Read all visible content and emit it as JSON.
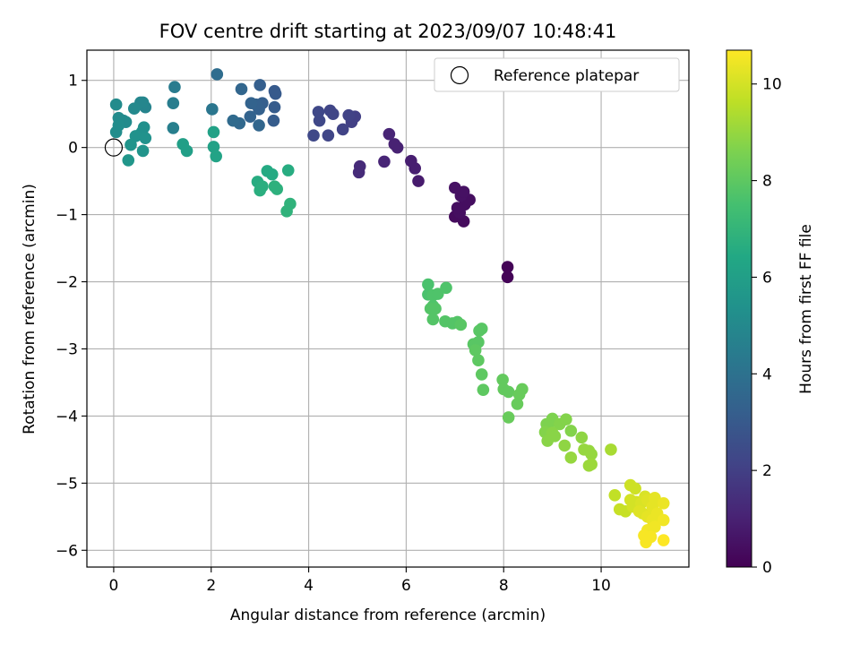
{
  "chart_data": {
    "type": "scatter",
    "title": "FOV centre drift starting at 2023/09/07 10:48:41",
    "xlabel": "Angular distance from reference (arcmin)",
    "ylabel": "Rotation from reference (arcmin)",
    "xlim": [
      -0.55,
      11.8
    ],
    "ylim": [
      -6.25,
      1.45
    ],
    "xticks": [
      0,
      2,
      4,
      6,
      8,
      10
    ],
    "yticks": [
      1,
      0,
      -1,
      -2,
      -3,
      -4,
      -5,
      -6
    ],
    "grid": true,
    "legend": {
      "position": "top-right",
      "entries": [
        "Reference platepar"
      ]
    },
    "reference_point": {
      "x": 0,
      "y": 0
    },
    "colorbar": {
      "label": "Hours from first FF file",
      "colormap": "viridis",
      "range": [
        0,
        10.7
      ],
      "ticks": [
        0,
        2,
        4,
        6,
        8,
        10
      ]
    },
    "points": [
      {
        "x": 8.08,
        "y": -1.78,
        "h": 0.1
      },
      {
        "x": 8.08,
        "y": -1.93,
        "h": 0.1
      },
      {
        "x": 7.18,
        "y": -1.1,
        "h": 0.3
      },
      {
        "x": 7.0,
        "y": -1.03,
        "h": 0.3
      },
      {
        "x": 7.1,
        "y": -0.97,
        "h": 0.4
      },
      {
        "x": 7.2,
        "y": -0.85,
        "h": 0.4
      },
      {
        "x": 7.3,
        "y": -0.78,
        "h": 0.4
      },
      {
        "x": 7.12,
        "y": -0.72,
        "h": 0.5
      },
      {
        "x": 7.18,
        "y": -0.66,
        "h": 0.5
      },
      {
        "x": 7.0,
        "y": -0.6,
        "h": 0.5
      },
      {
        "x": 7.05,
        "y": -0.9,
        "h": 0.4
      },
      {
        "x": 6.25,
        "y": -0.5,
        "h": 0.8
      },
      {
        "x": 6.18,
        "y": -0.31,
        "h": 0.9
      },
      {
        "x": 6.1,
        "y": -0.2,
        "h": 0.9
      },
      {
        "x": 5.82,
        "y": 0.0,
        "h": 1.0
      },
      {
        "x": 5.76,
        "y": 0.05,
        "h": 1.0
      },
      {
        "x": 5.65,
        "y": 0.2,
        "h": 1.1
      },
      {
        "x": 5.55,
        "y": -0.21,
        "h": 1.1
      },
      {
        "x": 5.03,
        "y": -0.37,
        "h": 1.3
      },
      {
        "x": 5.05,
        "y": -0.28,
        "h": 1.3
      },
      {
        "x": 4.95,
        "y": 0.46,
        "h": 2.0
      },
      {
        "x": 4.88,
        "y": 0.38,
        "h": 2.0
      },
      {
        "x": 4.82,
        "y": 0.48,
        "h": 2.1
      },
      {
        "x": 4.7,
        "y": 0.27,
        "h": 2.1
      },
      {
        "x": 4.5,
        "y": 0.5,
        "h": 2.2
      },
      {
        "x": 4.44,
        "y": 0.55,
        "h": 2.2
      },
      {
        "x": 4.4,
        "y": 0.18,
        "h": 2.2
      },
      {
        "x": 4.22,
        "y": 0.4,
        "h": 2.3
      },
      {
        "x": 4.2,
        "y": 0.53,
        "h": 2.3
      },
      {
        "x": 4.1,
        "y": 0.18,
        "h": 2.3
      },
      {
        "x": 3.32,
        "y": 0.8,
        "h": 3.0
      },
      {
        "x": 3.3,
        "y": 0.84,
        "h": 3.0
      },
      {
        "x": 3.3,
        "y": 0.6,
        "h": 3.1
      },
      {
        "x": 3.28,
        "y": 0.4,
        "h": 3.1
      },
      {
        "x": 3.05,
        "y": 0.66,
        "h": 3.2
      },
      {
        "x": 3.0,
        "y": 0.93,
        "h": 3.2
      },
      {
        "x": 2.98,
        "y": 0.57,
        "h": 3.3
      },
      {
        "x": 2.92,
        "y": 0.64,
        "h": 3.3
      },
      {
        "x": 2.82,
        "y": 0.66,
        "h": 3.4
      },
      {
        "x": 2.8,
        "y": 0.46,
        "h": 3.4
      },
      {
        "x": 2.98,
        "y": 0.33,
        "h": 3.5
      },
      {
        "x": 2.62,
        "y": 0.87,
        "h": 3.5
      },
      {
        "x": 2.58,
        "y": 0.36,
        "h": 3.6
      },
      {
        "x": 2.45,
        "y": 0.4,
        "h": 3.7
      },
      {
        "x": 2.12,
        "y": 1.09,
        "h": 3.8
      },
      {
        "x": 2.02,
        "y": 0.57,
        "h": 4.2
      },
      {
        "x": 1.25,
        "y": 0.9,
        "h": 4.4
      },
      {
        "x": 1.22,
        "y": 0.66,
        "h": 4.5
      },
      {
        "x": 1.22,
        "y": 0.29,
        "h": 4.6
      },
      {
        "x": 0.65,
        "y": 0.6,
        "h": 4.8
      },
      {
        "x": 0.6,
        "y": 0.67,
        "h": 4.9
      },
      {
        "x": 0.55,
        "y": 0.67,
        "h": 4.9
      },
      {
        "x": 0.42,
        "y": 0.58,
        "h": 5.0
      },
      {
        "x": 0.2,
        "y": 0.4,
        "h": 5.0
      },
      {
        "x": 0.25,
        "y": 0.38,
        "h": 5.1
      },
      {
        "x": 0.1,
        "y": 0.44,
        "h": 5.1
      },
      {
        "x": 0.05,
        "y": 0.64,
        "h": 5.1
      },
      {
        "x": 0.1,
        "y": 0.33,
        "h": 5.2
      },
      {
        "x": 0.05,
        "y": 0.23,
        "h": 5.2
      },
      {
        "x": 0.62,
        "y": 0.3,
        "h": 5.3
      },
      {
        "x": 0.58,
        "y": 0.23,
        "h": 5.3
      },
      {
        "x": 0.45,
        "y": 0.17,
        "h": 5.4
      },
      {
        "x": 0.65,
        "y": 0.14,
        "h": 5.4
      },
      {
        "x": 0.35,
        "y": 0.04,
        "h": 5.5
      },
      {
        "x": 0.6,
        "y": -0.05,
        "h": 5.5
      },
      {
        "x": 0.3,
        "y": -0.19,
        "h": 5.6
      },
      {
        "x": 1.42,
        "y": 0.05,
        "h": 6.0
      },
      {
        "x": 1.5,
        "y": -0.05,
        "h": 6.0
      },
      {
        "x": 2.05,
        "y": 0.23,
        "h": 6.1
      },
      {
        "x": 2.05,
        "y": 0.01,
        "h": 6.1
      },
      {
        "x": 2.1,
        "y": -0.13,
        "h": 6.2
      },
      {
        "x": 3.15,
        "y": -0.35,
        "h": 6.5
      },
      {
        "x": 3.25,
        "y": -0.4,
        "h": 6.5
      },
      {
        "x": 3.58,
        "y": -0.34,
        "h": 6.6
      },
      {
        "x": 2.95,
        "y": -0.51,
        "h": 6.6
      },
      {
        "x": 3.05,
        "y": -0.58,
        "h": 6.7
      },
      {
        "x": 3.0,
        "y": -0.64,
        "h": 6.7
      },
      {
        "x": 3.3,
        "y": -0.58,
        "h": 6.8
      },
      {
        "x": 3.35,
        "y": -0.62,
        "h": 6.8
      },
      {
        "x": 3.62,
        "y": -0.84,
        "h": 6.9
      },
      {
        "x": 3.55,
        "y": -0.95,
        "h": 6.9
      },
      {
        "x": 6.45,
        "y": -2.04,
        "h": 7.6
      },
      {
        "x": 6.45,
        "y": -2.19,
        "h": 7.6
      },
      {
        "x": 6.55,
        "y": -2.2,
        "h": 7.7
      },
      {
        "x": 6.65,
        "y": -2.18,
        "h": 7.7
      },
      {
        "x": 6.82,
        "y": -2.09,
        "h": 7.7
      },
      {
        "x": 6.55,
        "y": -2.36,
        "h": 7.7
      },
      {
        "x": 6.5,
        "y": -2.4,
        "h": 7.8
      },
      {
        "x": 6.6,
        "y": -2.4,
        "h": 7.8
      },
      {
        "x": 6.55,
        "y": -2.56,
        "h": 7.8
      },
      {
        "x": 6.8,
        "y": -2.59,
        "h": 7.8
      },
      {
        "x": 6.95,
        "y": -2.62,
        "h": 7.8
      },
      {
        "x": 7.05,
        "y": -2.6,
        "h": 7.8
      },
      {
        "x": 7.12,
        "y": -2.64,
        "h": 7.9
      },
      {
        "x": 7.5,
        "y": -2.73,
        "h": 7.9
      },
      {
        "x": 7.55,
        "y": -2.7,
        "h": 7.9
      },
      {
        "x": 7.38,
        "y": -2.93,
        "h": 7.9
      },
      {
        "x": 7.48,
        "y": -2.9,
        "h": 7.9
      },
      {
        "x": 7.42,
        "y": -3.02,
        "h": 8.0
      },
      {
        "x": 7.48,
        "y": -3.17,
        "h": 8.0
      },
      {
        "x": 7.55,
        "y": -3.38,
        "h": 8.0
      },
      {
        "x": 7.58,
        "y": -3.61,
        "h": 8.0
      },
      {
        "x": 7.98,
        "y": -3.46,
        "h": 8.1
      },
      {
        "x": 8.0,
        "y": -3.6,
        "h": 8.1
      },
      {
        "x": 8.1,
        "y": -3.64,
        "h": 8.1
      },
      {
        "x": 8.1,
        "y": -4.02,
        "h": 8.2
      },
      {
        "x": 8.32,
        "y": -3.68,
        "h": 8.2
      },
      {
        "x": 8.38,
        "y": -3.6,
        "h": 8.2
      },
      {
        "x": 8.28,
        "y": -3.82,
        "h": 8.2
      },
      {
        "x": 9.0,
        "y": -4.04,
        "h": 8.6
      },
      {
        "x": 8.95,
        "y": -4.1,
        "h": 8.6
      },
      {
        "x": 8.88,
        "y": -4.12,
        "h": 8.6
      },
      {
        "x": 9.15,
        "y": -4.12,
        "h": 8.7
      },
      {
        "x": 9.28,
        "y": -4.05,
        "h": 8.7
      },
      {
        "x": 9.38,
        "y": -4.22,
        "h": 8.7
      },
      {
        "x": 8.85,
        "y": -4.24,
        "h": 8.7
      },
      {
        "x": 9.0,
        "y": -4.25,
        "h": 8.8
      },
      {
        "x": 9.05,
        "y": -4.3,
        "h": 8.8
      },
      {
        "x": 8.9,
        "y": -4.37,
        "h": 8.8
      },
      {
        "x": 9.25,
        "y": -4.44,
        "h": 8.9
      },
      {
        "x": 9.6,
        "y": -4.32,
        "h": 8.9
      },
      {
        "x": 9.65,
        "y": -4.5,
        "h": 9.0
      },
      {
        "x": 9.75,
        "y": -4.52,
        "h": 9.0
      },
      {
        "x": 9.8,
        "y": -4.57,
        "h": 9.0
      },
      {
        "x": 9.38,
        "y": -4.62,
        "h": 9.0
      },
      {
        "x": 9.8,
        "y": -4.72,
        "h": 9.1
      },
      {
        "x": 9.75,
        "y": -4.74,
        "h": 9.1
      },
      {
        "x": 10.2,
        "y": -4.5,
        "h": 9.3
      },
      {
        "x": 10.28,
        "y": -5.18,
        "h": 9.7
      },
      {
        "x": 10.38,
        "y": -5.39,
        "h": 9.8
      },
      {
        "x": 10.5,
        "y": -5.42,
        "h": 9.8
      },
      {
        "x": 10.6,
        "y": -5.03,
        "h": 9.9
      },
      {
        "x": 10.7,
        "y": -5.08,
        "h": 9.9
      },
      {
        "x": 10.6,
        "y": -5.25,
        "h": 10.0
      },
      {
        "x": 10.72,
        "y": -5.28,
        "h": 10.0
      },
      {
        "x": 10.65,
        "y": -5.35,
        "h": 10.0
      },
      {
        "x": 10.82,
        "y": -5.3,
        "h": 10.1
      },
      {
        "x": 10.9,
        "y": -5.2,
        "h": 10.1
      },
      {
        "x": 10.78,
        "y": -5.42,
        "h": 10.2
      },
      {
        "x": 10.85,
        "y": -5.45,
        "h": 10.2
      },
      {
        "x": 10.95,
        "y": -5.25,
        "h": 10.2
      },
      {
        "x": 11.05,
        "y": -5.35,
        "h": 10.3
      },
      {
        "x": 11.1,
        "y": -5.22,
        "h": 10.3
      },
      {
        "x": 10.95,
        "y": -5.5,
        "h": 10.3
      },
      {
        "x": 11.05,
        "y": -5.55,
        "h": 10.4
      },
      {
        "x": 11.15,
        "y": -5.45,
        "h": 10.4
      },
      {
        "x": 11.28,
        "y": -5.3,
        "h": 10.4
      },
      {
        "x": 11.28,
        "y": -5.55,
        "h": 10.5
      },
      {
        "x": 11.1,
        "y": -5.65,
        "h": 10.5
      },
      {
        "x": 10.95,
        "y": -5.7,
        "h": 10.5
      },
      {
        "x": 10.88,
        "y": -5.78,
        "h": 10.6
      },
      {
        "x": 11.02,
        "y": -5.8,
        "h": 10.6
      },
      {
        "x": 10.92,
        "y": -5.88,
        "h": 10.6
      },
      {
        "x": 11.28,
        "y": -5.85,
        "h": 10.7
      }
    ]
  }
}
